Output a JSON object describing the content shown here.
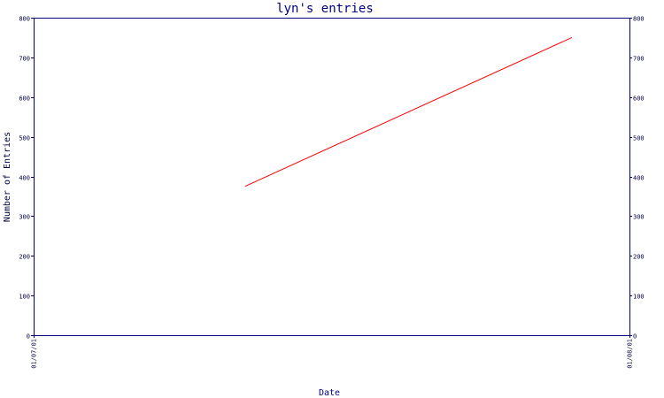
{
  "chart_data": {
    "type": "line",
    "title": "lyn's entries",
    "xlabel": "Date",
    "ylabel": "Number of Entries",
    "x_ticks": [
      "01/07/01",
      "01/08/01"
    ],
    "xlim": [
      "2001-07-01",
      "2001-08-01"
    ],
    "ylim": [
      0,
      800
    ],
    "y_ticks": [
      0,
      100,
      200,
      300,
      400,
      500,
      600,
      700,
      800
    ],
    "grid": false,
    "series": [
      {
        "color": "#ff0000",
        "x": [
          "2001-07-12",
          "2001-07-29"
        ],
        "values": [
          375,
          750
        ]
      }
    ]
  }
}
